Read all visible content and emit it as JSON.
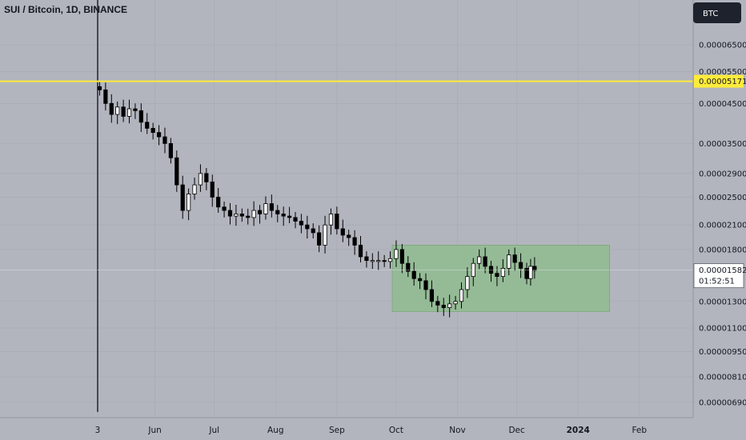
{
  "header": {
    "title": "SUI / Bitcoin, 1D, BINANCE"
  },
  "currency_button": {
    "label": "BTC"
  },
  "colors": {
    "background": "#b2b5be",
    "candle": "#000000",
    "horizontal_line": "#ffeb3b",
    "range_box": "#8fbc8f",
    "currency_button": "#1e222d"
  },
  "chart_data": {
    "type": "candlestick",
    "title": "SUI / Bitcoin, 1D, BINANCE",
    "y_scale": "log",
    "y_ticks": [
      {
        "label": "0.00006500",
        "value": 6.5e-05
      },
      {
        "label": "0.00005500",
        "value": 5.5e-05
      },
      {
        "label": "0.00004500",
        "value": 4.5e-05
      },
      {
        "label": "0.00003500",
        "value": 3.5e-05
      },
      {
        "label": "0.00002900",
        "value": 2.9e-05
      },
      {
        "label": "0.00002500",
        "value": 2.5e-05
      },
      {
        "label": "0.00002100",
        "value": 2.1e-05
      },
      {
        "label": "0.00001800",
        "value": 1.8e-05
      },
      {
        "label": "0.00001300",
        "value": 1.3e-05
      },
      {
        "label": "0.00001100",
        "value": 1.1e-05
      },
      {
        "label": "0.00000950",
        "value": 9.5e-06
      },
      {
        "label": "0.00000810",
        "value": 8.1e-06
      },
      {
        "label": "0.00000690",
        "value": 6.9e-06
      }
    ],
    "x_ticks": [
      {
        "label": "3",
        "date": "2023-05-03"
      },
      {
        "label": "Jun",
        "date": "2023-06-01"
      },
      {
        "label": "Jul",
        "date": "2023-07-01"
      },
      {
        "label": "Aug",
        "date": "2023-08-01"
      },
      {
        "label": "Sep",
        "date": "2023-09-01"
      },
      {
        "label": "Oct",
        "date": "2023-10-01"
      },
      {
        "label": "Nov",
        "date": "2023-11-01"
      },
      {
        "label": "Dec",
        "date": "2023-12-01"
      },
      {
        "label": "2024",
        "date": "2024-01-01",
        "bold": true
      },
      {
        "label": "Feb",
        "date": "2024-02-01"
      }
    ],
    "horizontal_line": {
      "value": 5.171e-05,
      "label": "0.00005171"
    },
    "current_price": {
      "value": 1.582e-05,
      "label": "0.00001582",
      "countdown": "01:52:51"
    },
    "range_box": {
      "start": "2023-09-29",
      "end": "2024-01-17",
      "top": 1.85e-05,
      "bottom": 1.22e-05
    },
    "listing_spike": {
      "date": "2023-05-03",
      "high": 0.00032,
      "low": 6.5e-06
    },
    "series": [
      {
        "date": "2023-05-04",
        "value": 4.9e-05
      },
      {
        "date": "2023-05-07",
        "value": 4.5e-05
      },
      {
        "date": "2023-05-10",
        "value": 4.2e-05
      },
      {
        "date": "2023-05-13",
        "value": 4.4e-05
      },
      {
        "date": "2023-05-16",
        "value": 4.15e-05
      },
      {
        "date": "2023-05-19",
        "value": 4.35e-05
      },
      {
        "date": "2023-05-22",
        "value": 4.3e-05
      },
      {
        "date": "2023-05-25",
        "value": 4e-05
      },
      {
        "date": "2023-05-28",
        "value": 3.85e-05
      },
      {
        "date": "2023-05-31",
        "value": 3.75e-05
      },
      {
        "date": "2023-06-03",
        "value": 3.65e-05
      },
      {
        "date": "2023-06-06",
        "value": 3.5e-05
      },
      {
        "date": "2023-06-09",
        "value": 3.2e-05
      },
      {
        "date": "2023-06-12",
        "value": 2.7e-05
      },
      {
        "date": "2023-06-15",
        "value": 2.3e-05
      },
      {
        "date": "2023-06-18",
        "value": 2.55e-05
      },
      {
        "date": "2023-06-21",
        "value": 2.7e-05
      },
      {
        "date": "2023-06-24",
        "value": 2.9e-05
      },
      {
        "date": "2023-06-27",
        "value": 2.75e-05
      },
      {
        "date": "2023-06-30",
        "value": 2.5e-05
      },
      {
        "date": "2023-07-03",
        "value": 2.35e-05
      },
      {
        "date": "2023-07-06",
        "value": 2.3e-05
      },
      {
        "date": "2023-07-09",
        "value": 2.22e-05
      },
      {
        "date": "2023-07-12",
        "value": 2.25e-05
      },
      {
        "date": "2023-07-15",
        "value": 2.22e-05
      },
      {
        "date": "2023-07-18",
        "value": 2.2e-05
      },
      {
        "date": "2023-07-21",
        "value": 2.3e-05
      },
      {
        "date": "2023-07-24",
        "value": 2.25e-05
      },
      {
        "date": "2023-07-27",
        "value": 2.4e-05
      },
      {
        "date": "2023-07-30",
        "value": 2.3e-05
      },
      {
        "date": "2023-08-02",
        "value": 2.25e-05
      },
      {
        "date": "2023-08-05",
        "value": 2.22e-05
      },
      {
        "date": "2023-08-08",
        "value": 2.2e-05
      },
      {
        "date": "2023-08-11",
        "value": 2.15e-05
      },
      {
        "date": "2023-08-14",
        "value": 2.1e-05
      },
      {
        "date": "2023-08-17",
        "value": 2.05e-05
      },
      {
        "date": "2023-08-20",
        "value": 2e-05
      },
      {
        "date": "2023-08-23",
        "value": 1.85e-05
      },
      {
        "date": "2023-08-26",
        "value": 2.1e-05
      },
      {
        "date": "2023-08-29",
        "value": 2.25e-05
      },
      {
        "date": "2023-09-01",
        "value": 2.05e-05
      },
      {
        "date": "2023-09-04",
        "value": 1.97e-05
      },
      {
        "date": "2023-09-07",
        "value": 1.94e-05
      },
      {
        "date": "2023-09-10",
        "value": 1.85e-05
      },
      {
        "date": "2023-09-13",
        "value": 1.72e-05
      },
      {
        "date": "2023-09-16",
        "value": 1.68e-05
      },
      {
        "date": "2023-09-19",
        "value": 1.68e-05
      },
      {
        "date": "2023-09-22",
        "value": 1.68e-05
      },
      {
        "date": "2023-09-25",
        "value": 1.67e-05
      },
      {
        "date": "2023-09-28",
        "value": 1.7e-05
      },
      {
        "date": "2023-10-01",
        "value": 1.8e-05
      },
      {
        "date": "2023-10-04",
        "value": 1.65e-05
      },
      {
        "date": "2023-10-07",
        "value": 1.57e-05
      },
      {
        "date": "2023-10-10",
        "value": 1.5e-05
      },
      {
        "date": "2023-10-13",
        "value": 1.48e-05
      },
      {
        "date": "2023-10-16",
        "value": 1.4e-05
      },
      {
        "date": "2023-10-19",
        "value": 1.3e-05
      },
      {
        "date": "2023-10-22",
        "value": 1.27e-05
      },
      {
        "date": "2023-10-25",
        "value": 1.25e-05
      },
      {
        "date": "2023-10-28",
        "value": 1.28e-05
      },
      {
        "date": "2023-10-31",
        "value": 1.3e-05
      },
      {
        "date": "2023-11-03",
        "value": 1.4e-05
      },
      {
        "date": "2023-11-06",
        "value": 1.52e-05
      },
      {
        "date": "2023-11-09",
        "value": 1.65e-05
      },
      {
        "date": "2023-11-12",
        "value": 1.72e-05
      },
      {
        "date": "2023-11-15",
        "value": 1.62e-05
      },
      {
        "date": "2023-11-18",
        "value": 1.55e-05
      },
      {
        "date": "2023-11-21",
        "value": 1.52e-05
      },
      {
        "date": "2023-11-24",
        "value": 1.6e-05
      },
      {
        "date": "2023-11-27",
        "value": 1.74e-05
      },
      {
        "date": "2023-11-30",
        "value": 1.66e-05
      },
      {
        "date": "2023-12-03",
        "value": 1.6e-05
      },
      {
        "date": "2023-12-06",
        "value": 1.5e-05
      },
      {
        "date": "2023-12-08",
        "value": 1.62e-05
      },
      {
        "date": "2023-12-10",
        "value": 1.58e-05
      }
    ]
  }
}
